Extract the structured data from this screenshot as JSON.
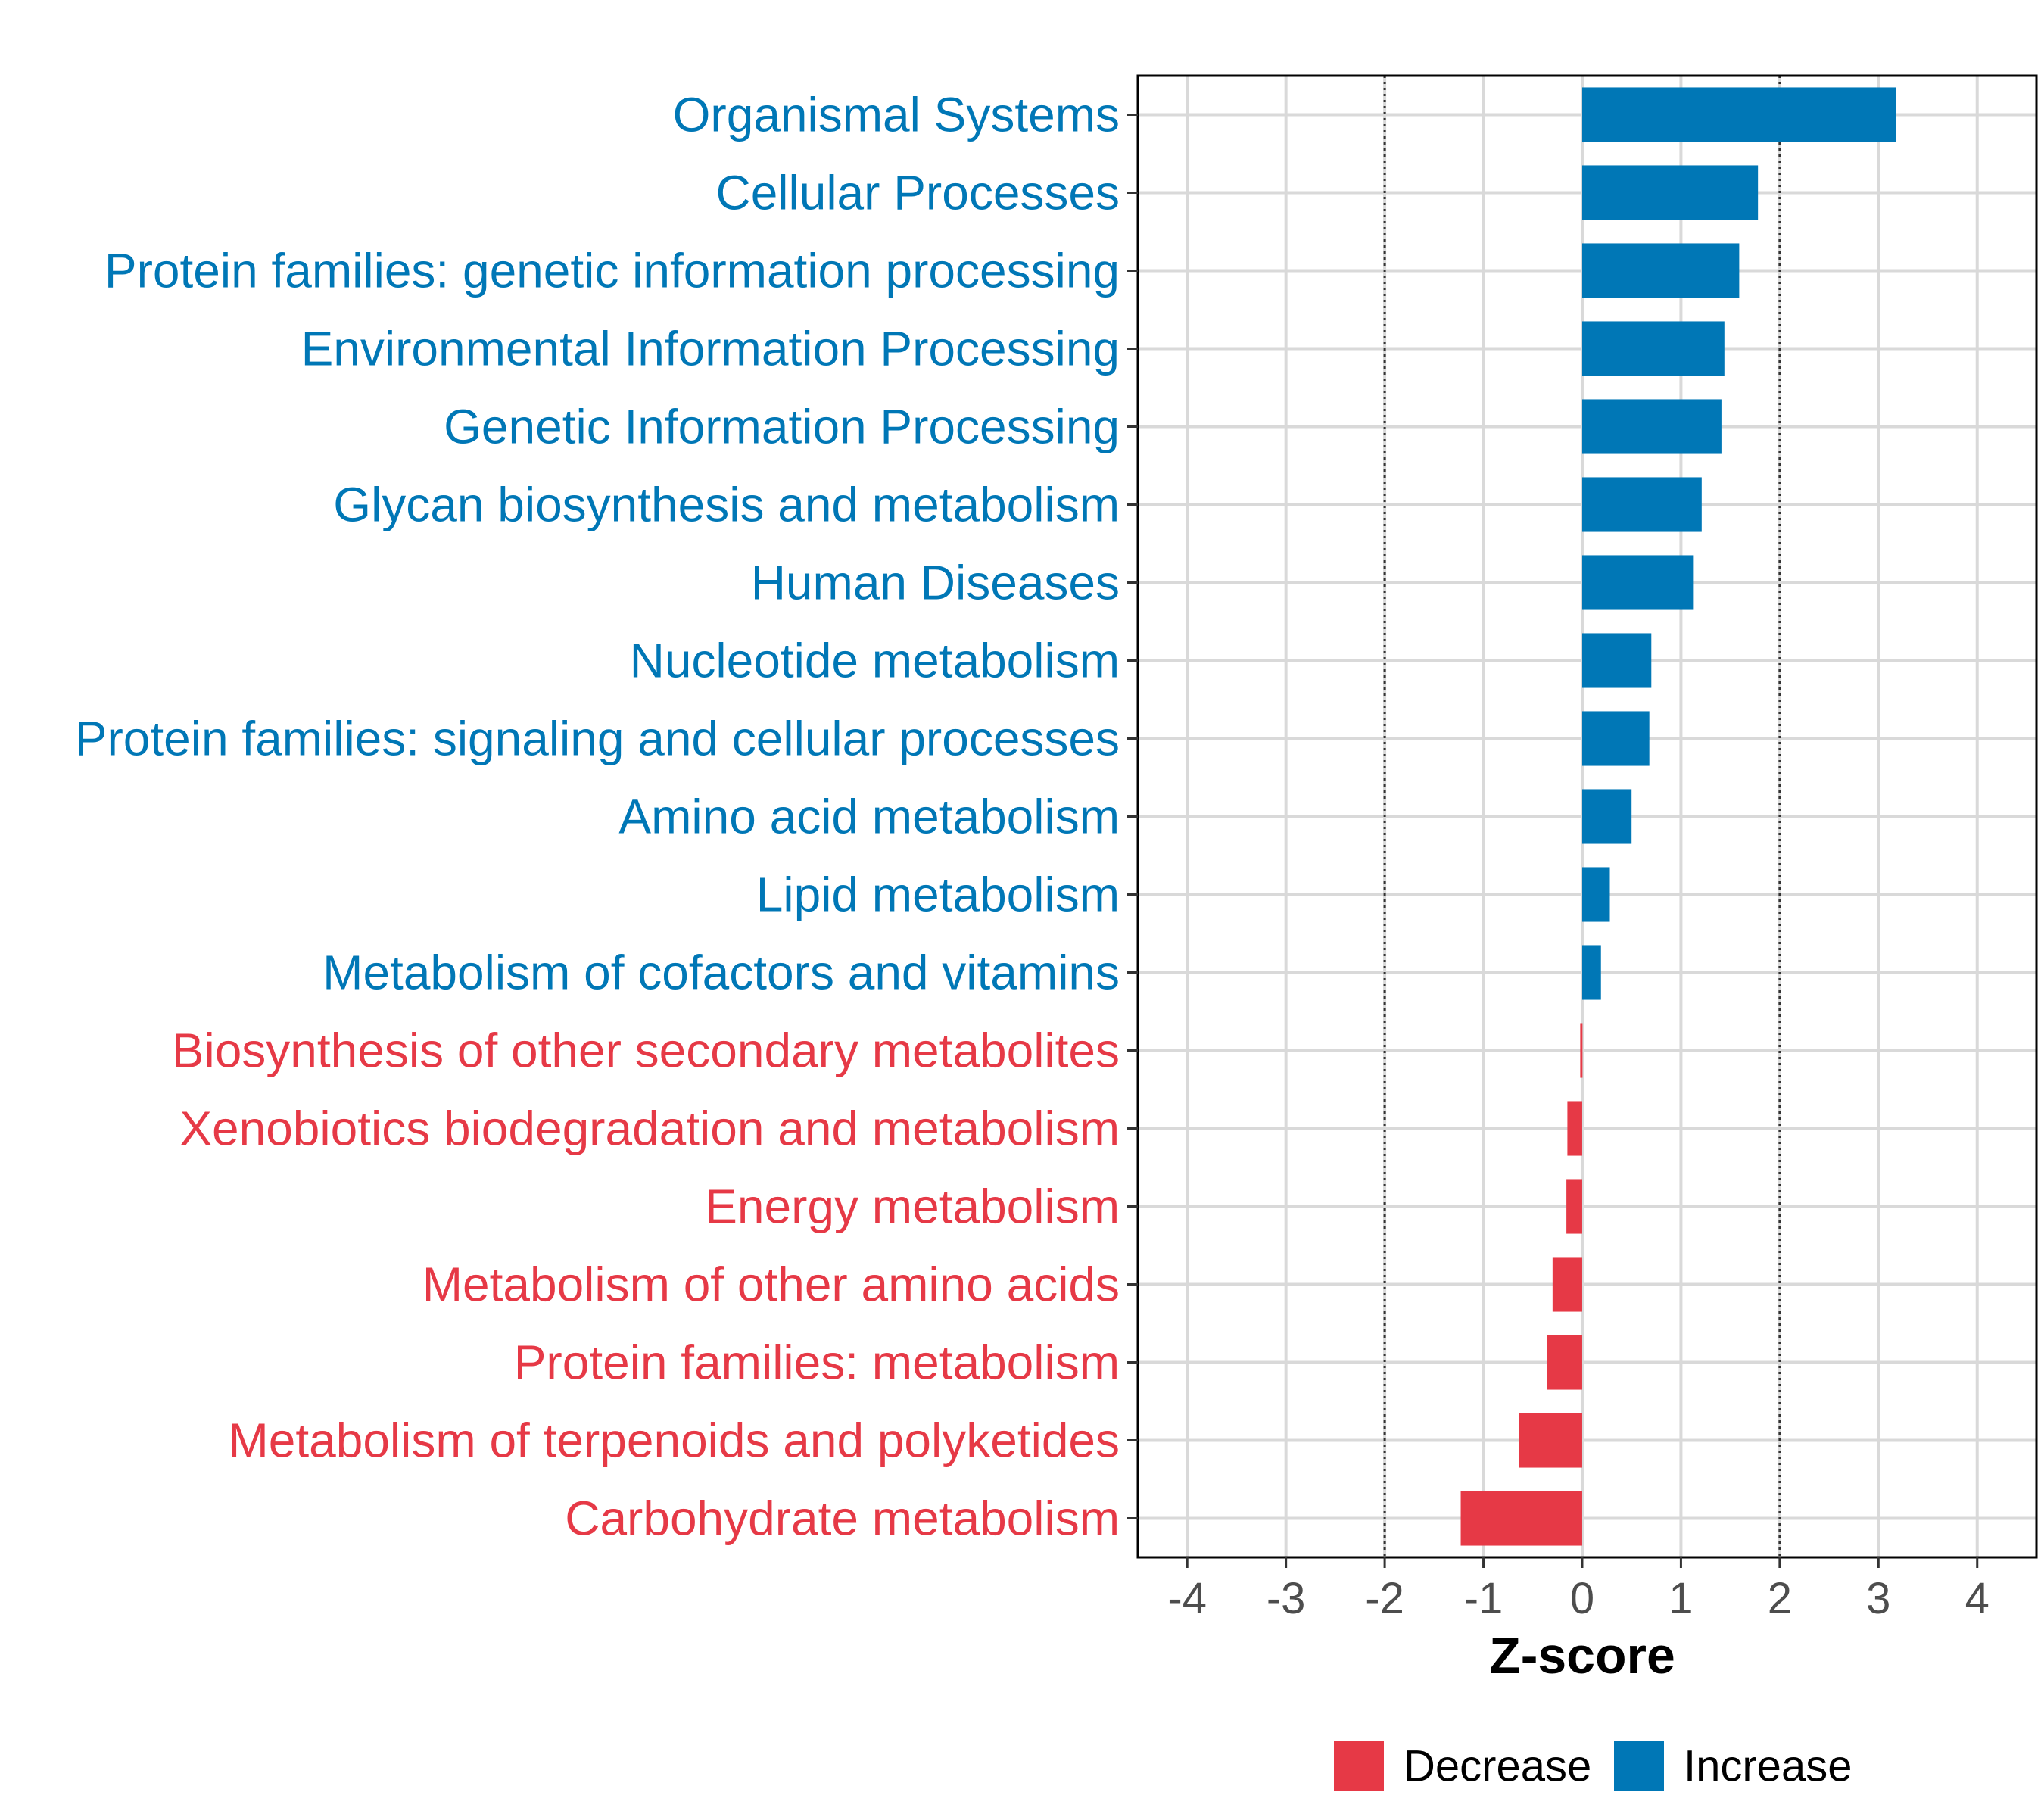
{
  "chart_data": {
    "type": "bar",
    "orientation": "horizontal",
    "title": "",
    "xlabel": "Z-score",
    "ylabel": "",
    "xlim": [
      -4.5,
      4.6
    ],
    "xticks": [
      -4,
      -3,
      -2,
      -1,
      0,
      1,
      2,
      3,
      4
    ],
    "xtick_labels": [
      "-4",
      "-3",
      "-2",
      "-1",
      "0",
      "1",
      "2",
      "3",
      "4"
    ],
    "reference_lines": [
      -2,
      2
    ],
    "grid": true,
    "categories": [
      "Organismal Systems",
      "Cellular Processes",
      "Protein families: genetic information processing",
      "Environmental Information Processing",
      "Genetic Information Processing",
      "Glycan biosynthesis and metabolism",
      "Human Diseases",
      "Nucleotide metabolism",
      "Protein families: signaling and cellular processes",
      "Amino acid metabolism",
      "Lipid metabolism",
      "Metabolism of cofactors and vitamins",
      "Biosynthesis of other secondary metabolites",
      "Xenobiotics biodegradation and metabolism",
      "Energy metabolism",
      "Metabolism of other amino acids",
      "Protein families: metabolism",
      "Metabolism of terpenoids and polyketides",
      "Carbohydrate metabolism"
    ],
    "values": [
      3.18,
      1.78,
      1.59,
      1.44,
      1.41,
      1.21,
      1.13,
      0.7,
      0.68,
      0.5,
      0.28,
      0.19,
      -0.02,
      -0.15,
      -0.16,
      -0.3,
      -0.36,
      -0.64,
      -1.23
    ],
    "groups": [
      "Increase",
      "Increase",
      "Increase",
      "Increase",
      "Increase",
      "Increase",
      "Increase",
      "Increase",
      "Increase",
      "Increase",
      "Increase",
      "Increase",
      "Decrease",
      "Decrease",
      "Decrease",
      "Decrease",
      "Decrease",
      "Decrease",
      "Decrease"
    ],
    "legend": {
      "position": "bottom",
      "entries": [
        {
          "name": "Decrease",
          "color": "#e63946"
        },
        {
          "name": "Increase",
          "color": "#0077b6"
        }
      ]
    },
    "colors": {
      "Increase": "#0077b6",
      "Decrease": "#e63946"
    }
  }
}
